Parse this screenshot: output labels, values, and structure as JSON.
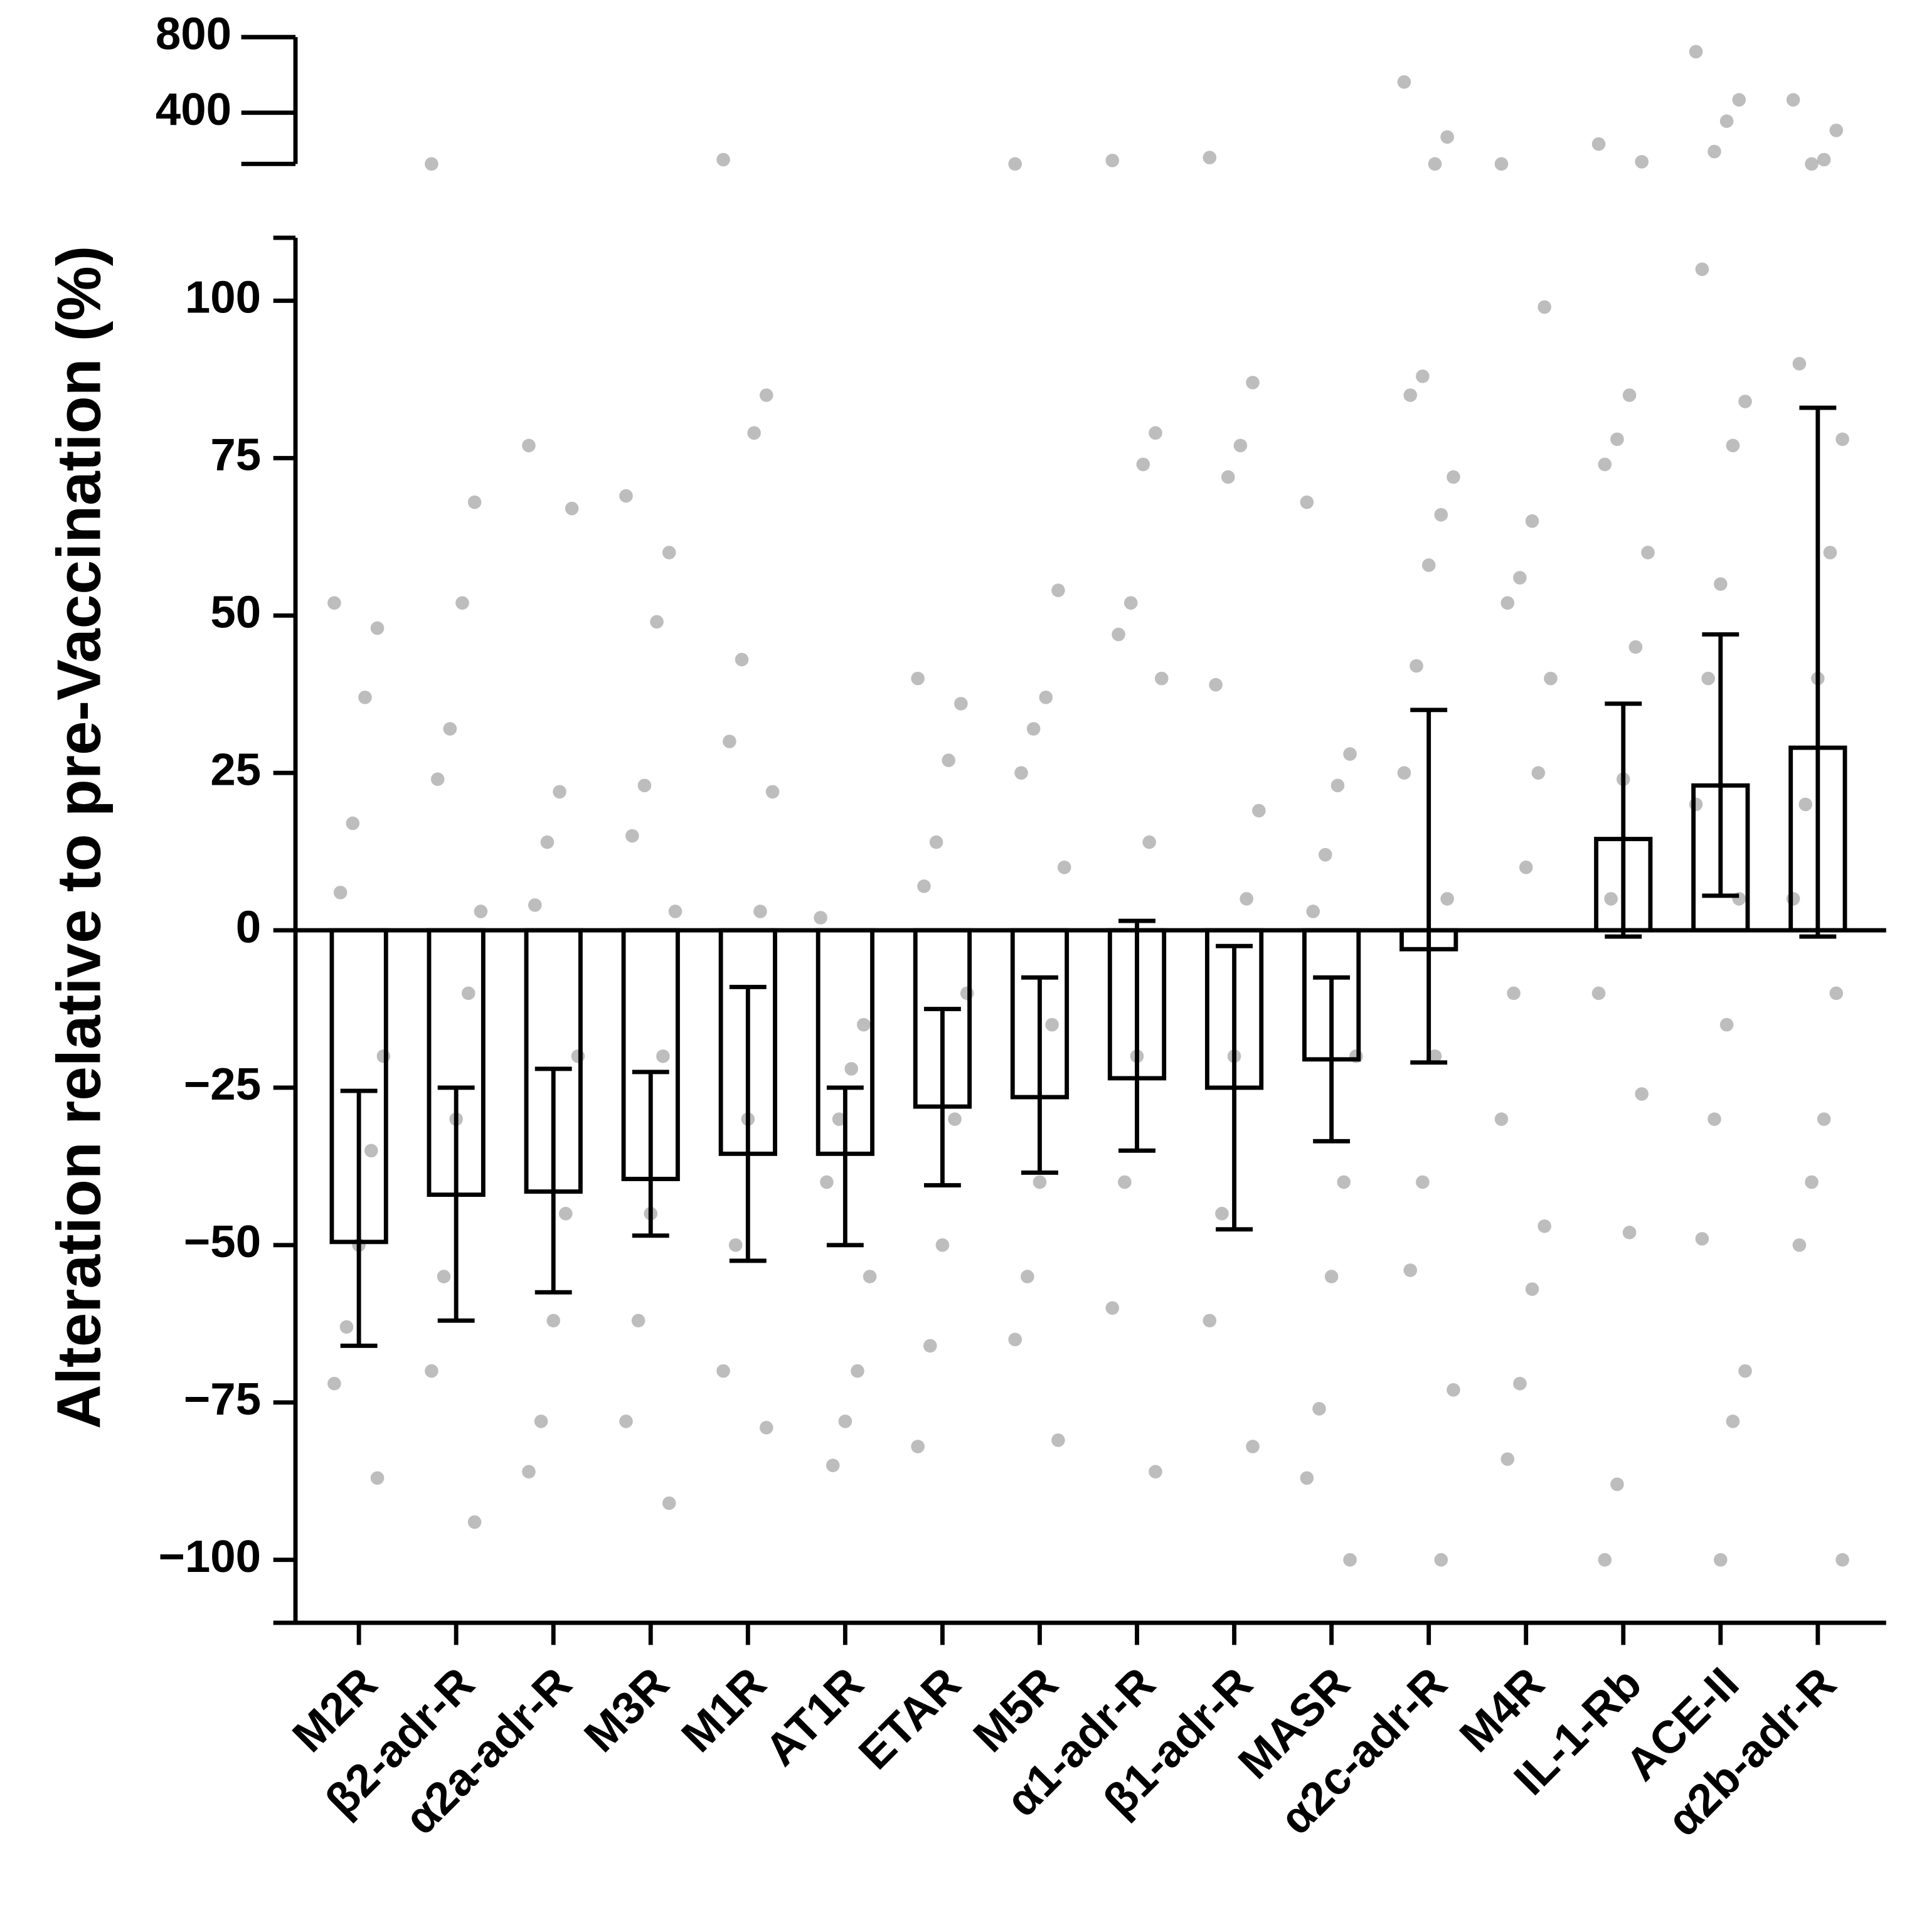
{
  "chart_data": {
    "type": "bar",
    "y_label": "Alteration relative to pre-Vaccination (%)",
    "categories": [
      "M2R",
      "β2-adr-R",
      "α2a-adr-R",
      "M3R",
      "M1R",
      "AT1R",
      "ETAR",
      "M5R",
      "α1-adr-R",
      "β1-adr-R",
      "MASR",
      "α2c-adr-R",
      "M4R",
      "IL-1-Rb",
      "ACE-II",
      "α2b-adr-R"
    ],
    "values": [
      -49.5,
      -42,
      -41.5,
      -39.5,
      -35.5,
      -35.5,
      -28,
      -26.5,
      -23.5,
      -25,
      -20.5,
      -3,
      null,
      14.5,
      23,
      29
    ],
    "error_low": [
      -66,
      -62,
      -57.5,
      -48.5,
      -52.5,
      -50,
      -40.5,
      -38.5,
      -35,
      -47.5,
      -33.5,
      -21,
      null,
      -1,
      5.5,
      -1
    ],
    "error_high": [
      -25.5,
      -25,
      -22,
      -22.5,
      -9,
      -25,
      -12.5,
      -7.5,
      1.5,
      -2.5,
      -7.5,
      35,
      null,
      36,
      47,
      83
    ],
    "points": [
      [
        52,
        48,
        37,
        17,
        6,
        -20,
        -35,
        -50,
        -63,
        -72,
        -87
      ],
      [
        250,
        68,
        52,
        32,
        24,
        3,
        -10,
        -30,
        -55,
        -70,
        -94
      ],
      [
        77,
        67,
        22,
        14,
        4,
        -20,
        -45,
        -62,
        -78,
        -86
      ],
      [
        69,
        60,
        49,
        23,
        15,
        3,
        -20,
        -45,
        -62,
        -78,
        -91
      ],
      [
        260,
        85,
        79,
        43,
        30,
        22,
        3,
        -30,
        -50,
        -70,
        -79
      ],
      [
        2,
        -15,
        -22,
        -30,
        -40,
        -55,
        -70,
        -78,
        -85
      ],
      [
        40,
        36,
        27,
        14,
        7,
        -10,
        -30,
        -50,
        -66,
        -82
      ],
      [
        250,
        54,
        37,
        32,
        25,
        10,
        -15,
        -40,
        -55,
        -65,
        -81
      ],
      [
        258,
        79,
        74,
        52,
        47,
        40,
        14,
        -20,
        -40,
        -60,
        -86
      ],
      [
        265,
        87,
        77,
        72,
        39,
        19,
        5,
        -20,
        -45,
        -62,
        -82
      ],
      [
        68,
        28,
        23,
        12,
        3,
        -20,
        -40,
        -55,
        -76,
        -87,
        -100
      ],
      [
        530,
        320,
        250,
        88,
        85,
        72,
        66,
        58,
        42,
        25,
        5,
        -20,
        -40,
        -54,
        -73,
        -100
      ],
      [
        250,
        99,
        65,
        56,
        52,
        40,
        25,
        10,
        -10,
        -30,
        -47,
        -57,
        -72,
        -84
      ],
      [
        300,
        255,
        85,
        78,
        74,
        60,
        45,
        24,
        5,
        -10,
        -26,
        -48,
        -88,
        -100
      ],
      [
        700,
        450,
        370,
        280,
        105,
        84,
        77,
        55,
        40,
        20,
        5,
        -15,
        -30,
        -49,
        -70,
        -78,
        -100
      ],
      [
        450,
        340,
        260,
        250,
        90,
        78,
        60,
        40,
        20,
        5,
        -10,
        -30,
        -40,
        -50,
        -100
      ]
    ],
    "ylim": [
      -110,
      110
    ],
    "yticks": [
      {
        "value": -100,
        "label": "−100"
      },
      {
        "value": -75,
        "label": "−75"
      },
      {
        "value": -50,
        "label": "−50"
      },
      {
        "value": -25,
        "label": "−25"
      },
      0,
      25,
      50,
      75,
      100
    ],
    "upper_ylim": [
      250,
      800
    ],
    "upper_yticks": [
      400,
      800
    ],
    "upper_log": true,
    "bar_color": "#000000",
    "point_color": "#9a9a9a"
  }
}
